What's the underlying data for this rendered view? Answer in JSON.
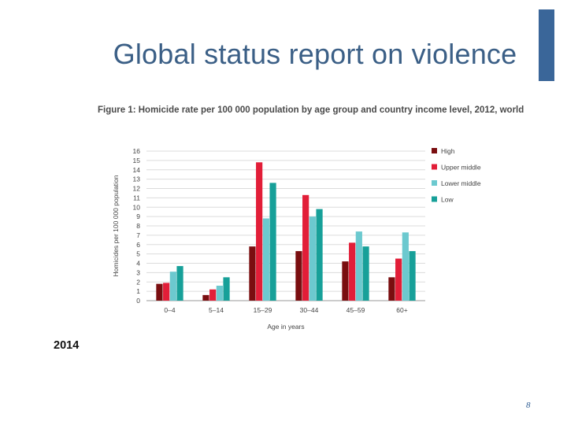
{
  "slide": {
    "title": "Global status report on violence",
    "year": "2014",
    "page_number": "8"
  },
  "colors": {
    "title": "#3b5f86",
    "accent_bar": "#3a6699",
    "high": "#7a0e10",
    "upper_middle": "#e21e38",
    "lower_middle": "#6cc9cf",
    "low": "#17a099"
  },
  "chart_data": {
    "type": "bar",
    "title": "Figure 1: Homicide rate per 100 000 population by age group and country income level, 2012, world",
    "xlabel": "Age in years",
    "ylabel": "Homicides per 100 000 population",
    "ylim": [
      0,
      16
    ],
    "yticks": [
      "0",
      "1",
      "2",
      "3",
      "4",
      "5",
      "6",
      "7",
      "8",
      "9",
      "10",
      "11",
      "12",
      "13",
      "14",
      "15",
      "16"
    ],
    "grid": true,
    "legend_position": "right",
    "categories": [
      "0–4",
      "5–14",
      "15–29",
      "30–44",
      "45–59",
      "60+"
    ],
    "series": [
      {
        "name": "High",
        "color": "#7a0e10",
        "values": [
          1.8,
          0.6,
          5.8,
          5.3,
          4.2,
          2.5
        ]
      },
      {
        "name": "Upper middle",
        "color": "#e21e38",
        "values": [
          1.9,
          1.2,
          14.8,
          11.3,
          6.2,
          4.5
        ]
      },
      {
        "name": "Lower middle",
        "color": "#6cc9cf",
        "values": [
          3.1,
          1.6,
          8.8,
          9.0,
          7.4,
          7.3
        ]
      },
      {
        "name": "Low",
        "color": "#17a099",
        "values": [
          3.7,
          2.5,
          12.6,
          9.8,
          5.8,
          5.3
        ]
      }
    ]
  }
}
